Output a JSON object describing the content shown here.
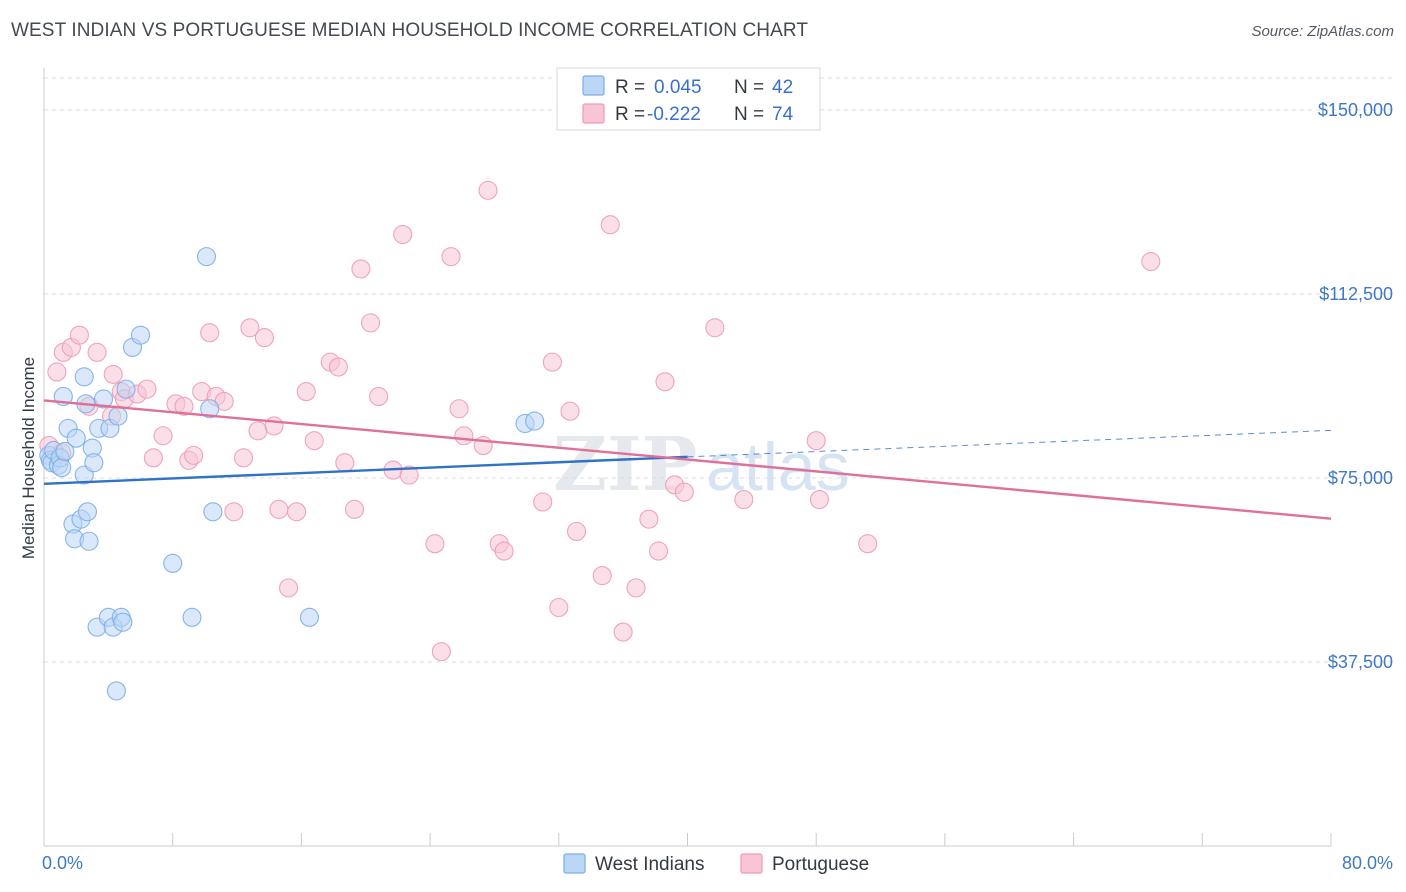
{
  "header": {
    "title": "WEST INDIAN VS PORTUGUESE MEDIAN HOUSEHOLD INCOME CORRELATION CHART",
    "source": "Source: ZipAtlas.com"
  },
  "watermark": {
    "zip": "ZIP",
    "atlas": "atlas"
  },
  "colors": {
    "west_indians": "#7aaee8",
    "west_indians_fill": "#bcd6f5",
    "west_indians_line": "#2f72c8",
    "portuguese": "#f09ab5",
    "portuguese_fill": "#f8c5d5",
    "portuguese_line": "#e0709a",
    "axis_text": "#3f78c6",
    "grid": "#d9dde2"
  },
  "legend": {
    "r_label": "R =",
    "n_label": "N =",
    "west_indians_r": "0.045",
    "west_indians_n": "42",
    "portuguese_r": "-0.222",
    "portuguese_n": "74"
  },
  "chart_data": {
    "type": "scatter",
    "title": "WEST INDIAN VS PORTUGUESE MEDIAN HOUSEHOLD INCOME CORRELATION CHART",
    "xlabel": "",
    "ylabel": "Median Household Income",
    "xlim": [
      0,
      80
    ],
    "ylim": [
      0,
      156500
    ],
    "x_tick_labels": {
      "min": "0.0%",
      "max": "80.0%"
    },
    "y_ticks": [
      {
        "value": 37500,
        "label": "$37,500"
      },
      {
        "value": 75000,
        "label": "$75,000"
      },
      {
        "value": 112500,
        "label": "$112,500"
      },
      {
        "value": 150000,
        "label": "$150,000"
      }
    ],
    "grid": "horizontal dashed",
    "legend_position": "top-center",
    "series": [
      {
        "name": "West Indians",
        "r": 0.045,
        "n": 42,
        "trend": {
          "x0": 0,
          "y0": 73800,
          "x1": 40,
          "y1": 79300,
          "dashed_to_x": 80,
          "dashed_to_y": 84700
        },
        "points": [
          [
            0.3,
            79600
          ],
          [
            0.4,
            78600
          ],
          [
            0.5,
            78100
          ],
          [
            0.6,
            80600
          ],
          [
            0.9,
            77600
          ],
          [
            1.0,
            79100
          ],
          [
            1.1,
            77100
          ],
          [
            1.3,
            80400
          ],
          [
            1.2,
            91600
          ],
          [
            1.5,
            85100
          ],
          [
            1.8,
            65600
          ],
          [
            1.9,
            62600
          ],
          [
            2.0,
            83100
          ],
          [
            2.3,
            66600
          ],
          [
            2.5,
            75600
          ],
          [
            2.5,
            95600
          ],
          [
            2.6,
            90100
          ],
          [
            2.7,
            68100
          ],
          [
            2.8,
            62100
          ],
          [
            3.0,
            81100
          ],
          [
            3.1,
            78100
          ],
          [
            3.3,
            44600
          ],
          [
            3.4,
            85100
          ],
          [
            3.7,
            91100
          ],
          [
            4.0,
            46600
          ],
          [
            4.1,
            85100
          ],
          [
            4.3,
            44600
          ],
          [
            4.5,
            31600
          ],
          [
            4.6,
            87600
          ],
          [
            4.8,
            46600
          ],
          [
            4.9,
            45600
          ],
          [
            5.1,
            93100
          ],
          [
            5.5,
            101600
          ],
          [
            6.0,
            104100
          ],
          [
            8.0,
            57600
          ],
          [
            9.2,
            46600
          ],
          [
            10.1,
            120100
          ],
          [
            10.3,
            89100
          ],
          [
            10.5,
            68100
          ],
          [
            16.5,
            46600
          ],
          [
            29.9,
            86100
          ],
          [
            30.5,
            86600
          ]
        ]
      },
      {
        "name": "Portuguese",
        "r": -0.222,
        "n": 74,
        "trend": {
          "x0": 0,
          "y0": 90800,
          "x1": 80,
          "y1": 66700
        },
        "points": [
          [
            0.3,
            81600
          ],
          [
            0.8,
            96600
          ],
          [
            1.1,
            80100
          ],
          [
            1.2,
            100600
          ],
          [
            1.7,
            101600
          ],
          [
            2.2,
            104100
          ],
          [
            2.8,
            89600
          ],
          [
            3.3,
            100600
          ],
          [
            4.2,
            87600
          ],
          [
            4.3,
            96100
          ],
          [
            4.8,
            92600
          ],
          [
            5.0,
            91100
          ],
          [
            5.8,
            92100
          ],
          [
            6.4,
            93100
          ],
          [
            6.8,
            79100
          ],
          [
            7.4,
            83600
          ],
          [
            8.2,
            90100
          ],
          [
            8.7,
            89600
          ],
          [
            9.0,
            78600
          ],
          [
            9.3,
            79600
          ],
          [
            9.8,
            92600
          ],
          [
            10.3,
            104600
          ],
          [
            10.7,
            91600
          ],
          [
            11.2,
            90600
          ],
          [
            11.8,
            68100
          ],
          [
            12.4,
            79100
          ],
          [
            12.8,
            105600
          ],
          [
            13.3,
            84600
          ],
          [
            13.7,
            103600
          ],
          [
            14.3,
            85600
          ],
          [
            14.6,
            68600
          ],
          [
            15.2,
            52600
          ],
          [
            15.7,
            68100
          ],
          [
            16.3,
            92600
          ],
          [
            16.8,
            82600
          ],
          [
            17.8,
            98600
          ],
          [
            18.3,
            97600
          ],
          [
            18.7,
            78100
          ],
          [
            19.3,
            68600
          ],
          [
            19.7,
            117600
          ],
          [
            20.3,
            106600
          ],
          [
            20.8,
            91600
          ],
          [
            21.7,
            76600
          ],
          [
            22.3,
            124600
          ],
          [
            22.7,
            75600
          ],
          [
            24.3,
            61600
          ],
          [
            24.7,
            39600
          ],
          [
            25.3,
            120100
          ],
          [
            25.8,
            89100
          ],
          [
            26.1,
            83600
          ],
          [
            27.3,
            81600
          ],
          [
            27.6,
            133600
          ],
          [
            28.3,
            61600
          ],
          [
            28.6,
            60100
          ],
          [
            31.0,
            70100
          ],
          [
            31.6,
            98600
          ],
          [
            32.0,
            48600
          ],
          [
            32.7,
            88600
          ],
          [
            33.1,
            64100
          ],
          [
            34.7,
            55100
          ],
          [
            35.2,
            126600
          ],
          [
            36.0,
            43600
          ],
          [
            36.8,
            52600
          ],
          [
            37.6,
            66600
          ],
          [
            38.2,
            60100
          ],
          [
            38.6,
            94600
          ],
          [
            39.2,
            73600
          ],
          [
            39.8,
            72100
          ],
          [
            41.7,
            105600
          ],
          [
            43.5,
            70600
          ],
          [
            48.0,
            82600
          ],
          [
            48.2,
            70600
          ],
          [
            51.2,
            61600
          ],
          [
            68.8,
            119100
          ]
        ]
      }
    ]
  }
}
